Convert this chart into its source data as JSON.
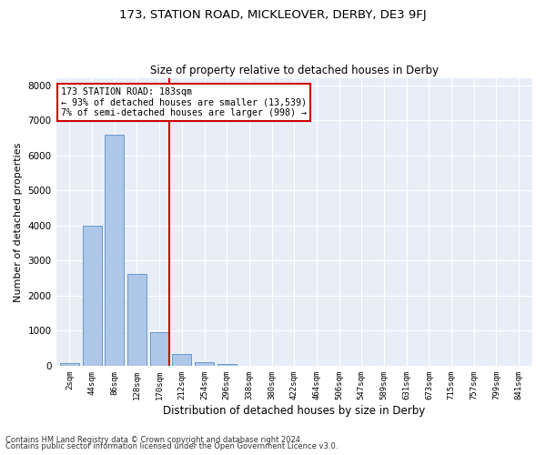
{
  "title_line1": "173, STATION ROAD, MICKLEOVER, DERBY, DE3 9FJ",
  "title_line2": "Size of property relative to detached houses in Derby",
  "xlabel": "Distribution of detached houses by size in Derby",
  "ylabel": "Number of detached properties",
  "categories": [
    "2sqm",
    "44sqm",
    "86sqm",
    "128sqm",
    "170sqm",
    "212sqm",
    "254sqm",
    "296sqm",
    "338sqm",
    "380sqm",
    "422sqm",
    "464sqm",
    "506sqm",
    "547sqm",
    "589sqm",
    "631sqm",
    "673sqm",
    "715sqm",
    "757sqm",
    "799sqm",
    "841sqm"
  ],
  "values": [
    70,
    4000,
    6600,
    2620,
    960,
    330,
    110,
    60,
    0,
    0,
    0,
    0,
    0,
    0,
    0,
    0,
    0,
    0,
    0,
    0,
    0
  ],
  "bar_color": "#aec6e8",
  "bar_edgecolor": "#5a8fc2",
  "vline_color": "#cc0000",
  "annotation_text": "173 STATION ROAD: 183sqm\n← 93% of detached houses are smaller (13,539)\n7% of semi-detached houses are larger (998) →",
  "annotation_box_edgecolor": "#cc0000",
  "ylim": [
    0,
    8200
  ],
  "yticks": [
    0,
    1000,
    2000,
    3000,
    4000,
    5000,
    6000,
    7000,
    8000
  ],
  "background_color": "#e8eef8",
  "footer_line1": "Contains HM Land Registry data © Crown copyright and database right 2024.",
  "footer_line2": "Contains public sector information licensed under the Open Government Licence v3.0."
}
